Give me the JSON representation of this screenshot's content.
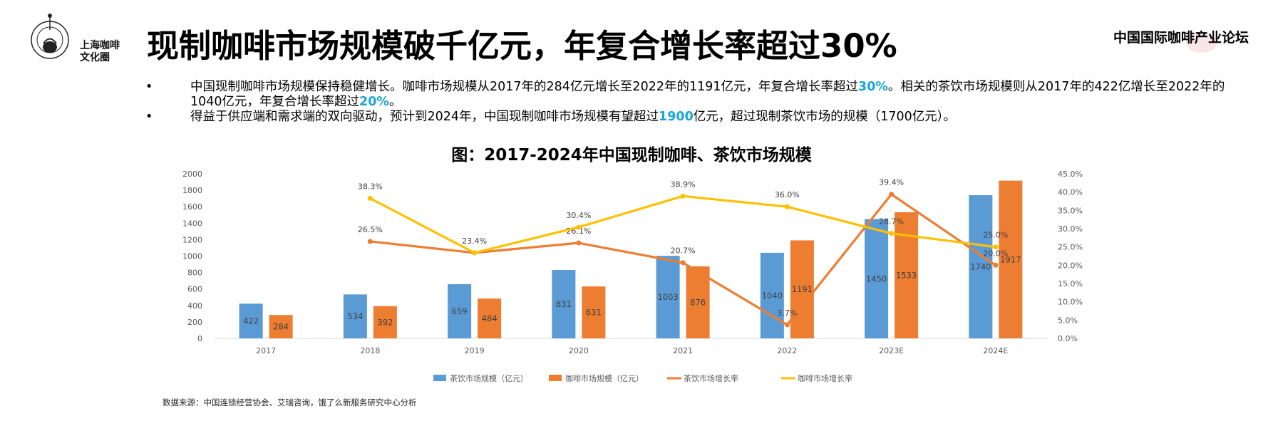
{
  "logo": {
    "line1": "上海咖啡",
    "line2": "文化圈"
  },
  "title": "现制咖啡市场规模破千亿元，年复合增长率超过30%",
  "brand": "中国国际咖啡产业论坛",
  "bullets": [
    {
      "dot": "•",
      "parts": [
        {
          "text": "中国现制咖啡市场规模保持稳健增长。咖啡市场规模从2017年的284亿元增长至2022年的1191亿元，年复合增长率超过",
          "hl": false
        },
        {
          "text": "30%",
          "hl": true
        },
        {
          "text": "。相关的茶饮市场规模则从2017年的422亿增长至2022年的1040亿元，年复合增长率超过",
          "hl": false
        },
        {
          "text": "20%",
          "hl": true
        },
        {
          "text": "。",
          "hl": false
        }
      ]
    },
    {
      "dot": "•",
      "parts": [
        {
          "text": "得益于供应端和需求端的双向驱动，预计到2024年，中国现制咖啡市场规模有望超过",
          "hl": false
        },
        {
          "text": "1900",
          "hl": true
        },
        {
          "text": "亿元，超过现制茶饮市场的规模（1700亿元）。",
          "hl": false
        }
      ]
    }
  ],
  "source": "数据来源：中国连锁经营协会、艾瑞咨询，饿了么新服务研究中心分析",
  "chart_data": {
    "type": "bar",
    "title": "图：2017-2024年中国现制咖啡、茶饮市场规模",
    "categories": [
      "2017",
      "2018",
      "2019",
      "2020",
      "2021",
      "2022",
      "2023E",
      "2024E"
    ],
    "ylim": [
      0,
      2000
    ],
    "yticks": [
      "0",
      "200",
      "400",
      "600",
      "800",
      "1000",
      "1200",
      "1400",
      "1600",
      "1800",
      "2000"
    ],
    "y2lim": [
      0,
      45
    ],
    "y2ticks": [
      "0.0%",
      "5.0%",
      "10.0%",
      "15.0%",
      "20.0%",
      "25.0%",
      "30.0%",
      "35.0%",
      "40.0%",
      "45.0%"
    ],
    "legend_position": "bottom",
    "grid": false,
    "series": [
      {
        "name": "茶饮市场规模（亿元）",
        "kind": "bar",
        "color": "#5b9bd5",
        "values": [
          422,
          534,
          659,
          831,
          1003,
          1040,
          1450,
          1740
        ],
        "labels": [
          "422",
          "534",
          "659",
          "831",
          "1003",
          "1040",
          "1450",
          "1740"
        ]
      },
      {
        "name": "咖啡市场规模（亿元）",
        "kind": "bar",
        "color": "#ed7d31",
        "values": [
          284,
          392,
          484,
          631,
          876,
          1191,
          1533,
          1917
        ],
        "labels": [
          "284",
          "392",
          "484",
          "631",
          "876",
          "1191",
          "1533",
          "1917"
        ]
      },
      {
        "name": "茶饮市场增长率",
        "kind": "line",
        "color": "#ed7d31",
        "x": [
          "2018",
          "2019",
          "2020",
          "2021",
          "2022",
          "2023E",
          "2024E"
        ],
        "values": [
          26.5,
          23.4,
          26.1,
          20.7,
          3.7,
          39.4,
          20.0
        ],
        "labels": [
          "26.5%",
          "23.4%",
          "26.1%",
          "20.7%",
          "3.7%",
          "39.4%",
          "20.0%"
        ]
      },
      {
        "name": "咖啡市场增长率",
        "kind": "line",
        "color": "#ffc000",
        "x": [
          "2018",
          "2019",
          "2020",
          "2021",
          "2022",
          "2023E",
          "2024E"
        ],
        "values": [
          38.3,
          23.4,
          30.4,
          38.9,
          36.0,
          28.7,
          25.0
        ],
        "labels": [
          "38.3%",
          "",
          "30.4%",
          "38.9%",
          "36.0%",
          "28.7%",
          "25.0%"
        ]
      }
    ]
  }
}
